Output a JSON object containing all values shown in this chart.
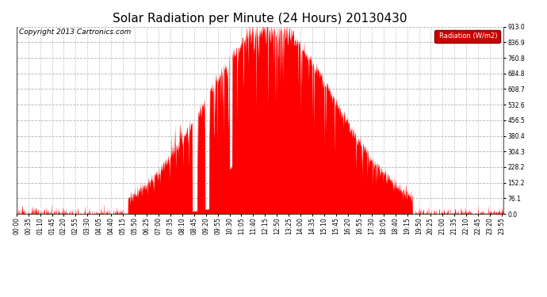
{
  "title": "Solar Radiation per Minute (24 Hours) 20130430",
  "ylabel": "Radiation (W/m2)",
  "copyright_text": "Copyright 2013 Cartronics.com",
  "bg_color": "#ffffff",
  "plot_bg_color": "#ffffff",
  "grid_color": "#aaaaaa",
  "bar_color": "#ff0000",
  "legend_bg_color": "#cc0000",
  "legend_text_color": "#ffffff",
  "yticks": [
    0.0,
    76.1,
    152.2,
    228.2,
    304.3,
    380.4,
    456.5,
    532.6,
    608.7,
    684.8,
    760.8,
    836.9,
    913.0
  ],
  "ymax": 913.0,
  "ymin": 0.0,
  "total_minutes": 1440,
  "sunrise_minute": 330,
  "sunset_minute": 1170,
  "peak_minute": 750,
  "peak_value": 913.0,
  "title_fontsize": 11,
  "tick_fontsize": 5.5,
  "copyright_fontsize": 6.5,
  "dpi": 100,
  "xtick_interval": 35
}
